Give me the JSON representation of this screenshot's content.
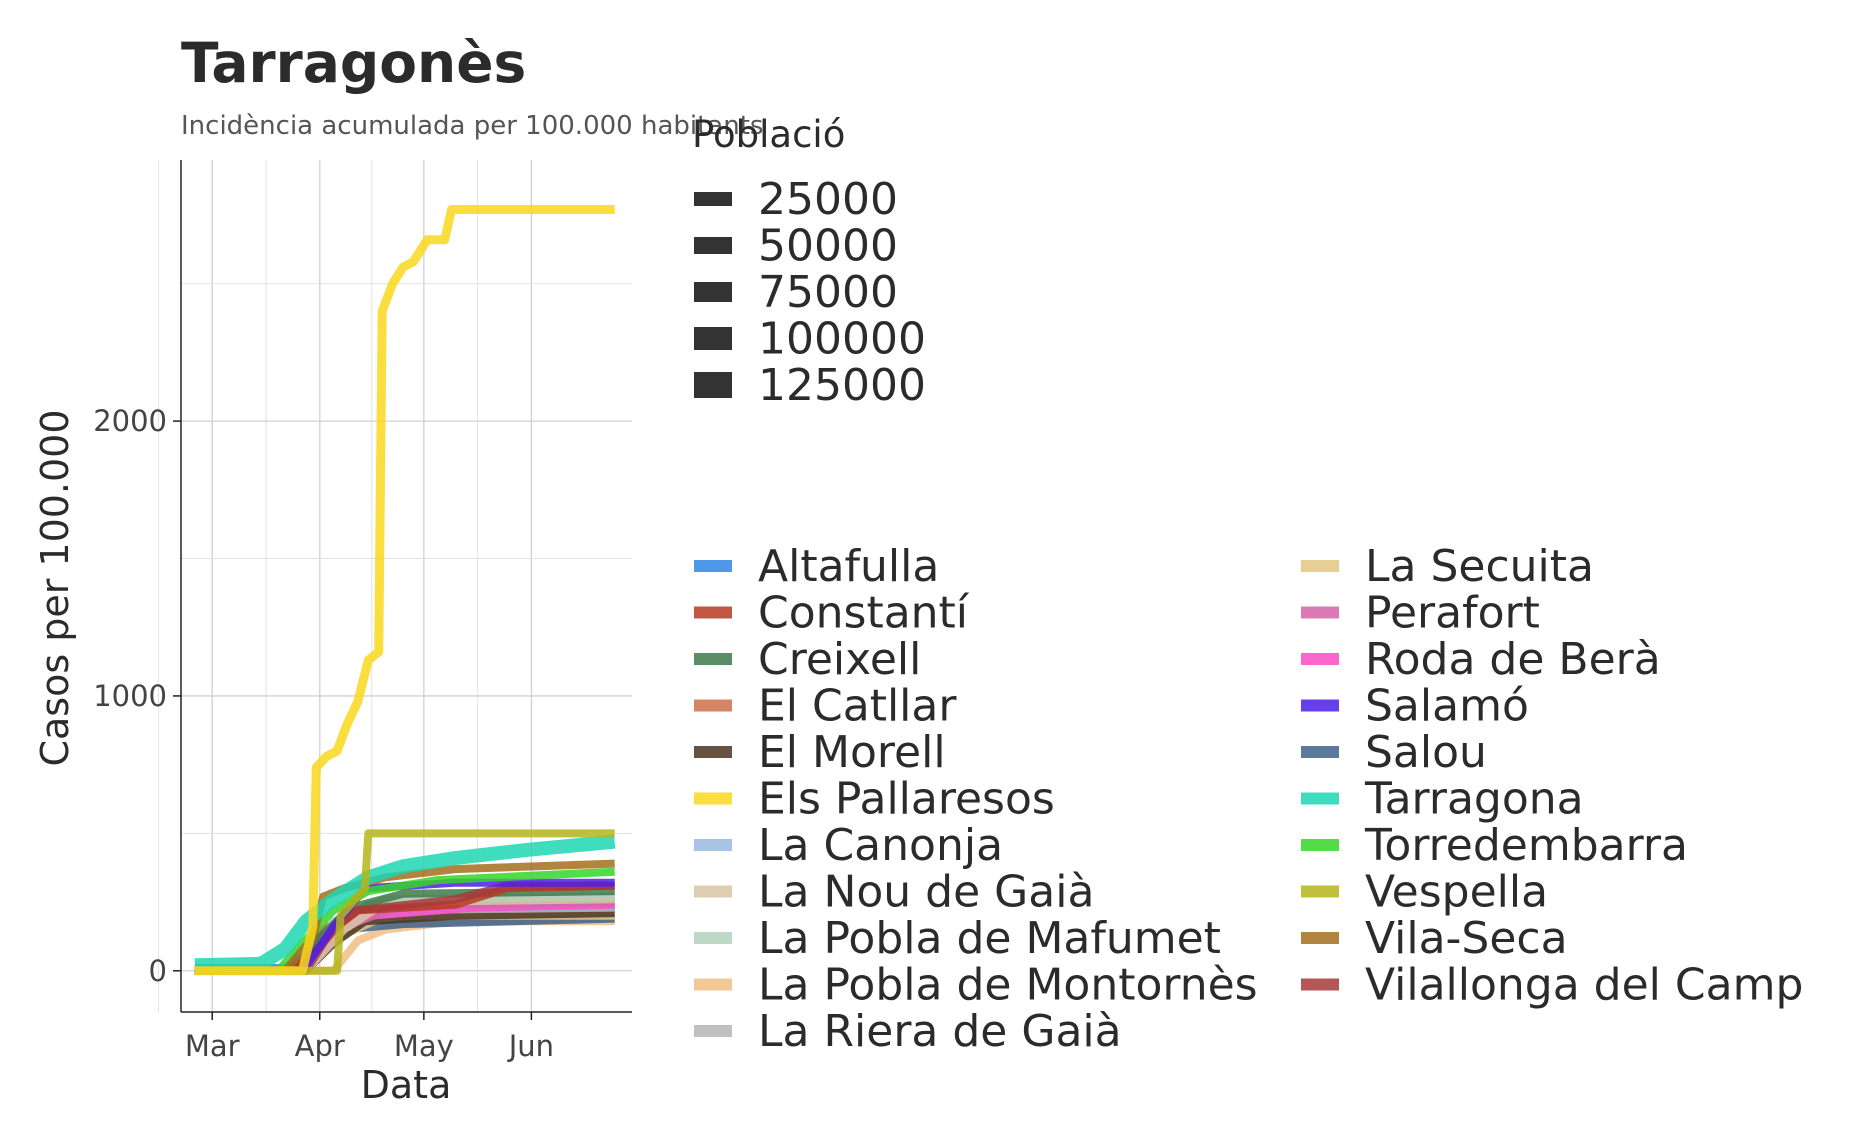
{
  "chart_data": {
    "type": "line",
    "title": "Tarragonès",
    "subtitle": "Incidència acumulada per 100.000 habitants",
    "xlabel": "Data",
    "ylabel": "Casos per 100.000",
    "x_ticks": [
      "Mar",
      "Apr",
      "May",
      "Jun"
    ],
    "x_tick_dates": [
      "2020-03-01",
      "2020-04-01",
      "2020-05-01",
      "2020-06-01"
    ],
    "y_ticks": [
      0,
      1000,
      2000
    ],
    "xlim": [
      "2020-02-21",
      "2020-06-30"
    ],
    "ylim": [
      -150,
      2950
    ],
    "grid": true,
    "size_legend": {
      "title": "Població",
      "values": [
        "25000",
        "50000",
        "75000",
        "100000",
        "125000"
      ]
    },
    "series": [
      {
        "name": "Altafulla",
        "color": "#2f86e8",
        "points": [
          [
            "2020-02-25",
            10
          ],
          [
            "2020-03-22",
            10
          ],
          [
            "2020-03-28",
            60
          ],
          [
            "2020-04-02",
            140
          ],
          [
            "2020-04-08",
            200
          ],
          [
            "2020-04-20",
            220
          ],
          [
            "2020-05-10",
            230
          ],
          [
            "2020-06-25",
            230
          ]
        ]
      },
      {
        "name": "Constantí",
        "color": "#b73a22",
        "points": [
          [
            "2020-02-25",
            0
          ],
          [
            "2020-03-22",
            0
          ],
          [
            "2020-03-30",
            60
          ],
          [
            "2020-04-06",
            160
          ],
          [
            "2020-04-12",
            220
          ],
          [
            "2020-05-10",
            240
          ],
          [
            "2020-05-25",
            300
          ],
          [
            "2020-06-25",
            310
          ]
        ]
      },
      {
        "name": "Creixell",
        "color": "#3d7a4a",
        "points": [
          [
            "2020-02-25",
            0
          ],
          [
            "2020-03-25",
            0
          ],
          [
            "2020-04-01",
            120
          ],
          [
            "2020-04-10",
            230
          ],
          [
            "2020-04-25",
            280
          ],
          [
            "2020-06-25",
            290
          ]
        ]
      },
      {
        "name": "El Catllar",
        "color": "#cc7049",
        "points": [
          [
            "2020-02-25",
            0
          ],
          [
            "2020-03-25",
            0
          ],
          [
            "2020-04-02",
            150
          ],
          [
            "2020-04-15",
            240
          ],
          [
            "2020-05-15",
            260
          ],
          [
            "2020-06-25",
            260
          ]
        ]
      },
      {
        "name": "El Morell",
        "color": "#4a3421",
        "points": [
          [
            "2020-02-25",
            0
          ],
          [
            "2020-03-28",
            0
          ],
          [
            "2020-04-05",
            100
          ],
          [
            "2020-04-14",
            180
          ],
          [
            "2020-05-10",
            200
          ],
          [
            "2020-06-25",
            210
          ]
        ]
      },
      {
        "name": "Els Pallaresos",
        "color": "#f9d71c",
        "points": [
          [
            "2020-02-25",
            0
          ],
          [
            "2020-03-27",
            0
          ],
          [
            "2020-03-30",
            160
          ],
          [
            "2020-03-31",
            740
          ],
          [
            "2020-04-03",
            780
          ],
          [
            "2020-04-06",
            800
          ],
          [
            "2020-04-09",
            900
          ],
          [
            "2020-04-12",
            980
          ],
          [
            "2020-04-15",
            1130
          ],
          [
            "2020-04-18",
            1160
          ],
          [
            "2020-04-19",
            2400
          ],
          [
            "2020-04-22",
            2500
          ],
          [
            "2020-04-25",
            2560
          ],
          [
            "2020-04-28",
            2580
          ],
          [
            "2020-05-02",
            2660
          ],
          [
            "2020-05-07",
            2660
          ],
          [
            "2020-05-09",
            2770
          ],
          [
            "2020-05-20",
            2770
          ],
          [
            "2020-06-25",
            2770
          ]
        ]
      },
      {
        "name": "La Canonja",
        "color": "#9ab9df",
        "points": [
          [
            "2020-02-25",
            0
          ],
          [
            "2020-03-25",
            0
          ],
          [
            "2020-04-03",
            120
          ],
          [
            "2020-04-15",
            200
          ],
          [
            "2020-05-15",
            230
          ],
          [
            "2020-06-25",
            240
          ]
        ]
      },
      {
        "name": "La Nou de Gaià",
        "color": "#d7c6a3",
        "points": [
          [
            "2020-02-25",
            0
          ],
          [
            "2020-03-28",
            0
          ],
          [
            "2020-04-08",
            150
          ],
          [
            "2020-04-20",
            250
          ],
          [
            "2020-06-25",
            260
          ]
        ]
      },
      {
        "name": "La Pobla de Mafumet",
        "color": "#b3d1be",
        "points": [
          [
            "2020-02-25",
            0
          ],
          [
            "2020-03-28",
            0
          ],
          [
            "2020-04-05",
            180
          ],
          [
            "2020-04-20",
            260
          ],
          [
            "2020-06-25",
            270
          ]
        ]
      },
      {
        "name": "La Pobla de Montornès",
        "color": "#f0be85",
        "points": [
          [
            "2020-02-25",
            0
          ],
          [
            "2020-04-05",
            0
          ],
          [
            "2020-04-12",
            110
          ],
          [
            "2020-04-20",
            150
          ],
          [
            "2020-05-10",
            180
          ],
          [
            "2020-06-25",
            180
          ]
        ]
      },
      {
        "name": "La Riera de Gaià",
        "color": "#b5b5b5",
        "points": [
          [
            "2020-02-25",
            0
          ],
          [
            "2020-03-26",
            0
          ],
          [
            "2020-04-04",
            140
          ],
          [
            "2020-04-18",
            220
          ],
          [
            "2020-06-25",
            230
          ]
        ]
      },
      {
        "name": "La Secuita",
        "color": "#e3c582",
        "points": [
          [
            "2020-02-25",
            0
          ],
          [
            "2020-03-28",
            0
          ],
          [
            "2020-04-06",
            120
          ],
          [
            "2020-04-20",
            200
          ],
          [
            "2020-06-25",
            200
          ]
        ]
      },
      {
        "name": "Perafort",
        "color": "#d564a9",
        "points": [
          [
            "2020-02-25",
            0
          ],
          [
            "2020-03-28",
            0
          ],
          [
            "2020-04-08",
            160
          ],
          [
            "2020-04-25",
            240
          ],
          [
            "2020-06-25",
            250
          ]
        ]
      },
      {
        "name": "Roda de Berà",
        "color": "#fb4cc6",
        "points": [
          [
            "2020-02-25",
            0
          ],
          [
            "2020-03-25",
            0
          ],
          [
            "2020-04-03",
            140
          ],
          [
            "2020-04-15",
            200
          ],
          [
            "2020-05-15",
            230
          ],
          [
            "2020-06-25",
            240
          ]
        ]
      },
      {
        "name": "Salamó",
        "color": "#4c1fe8",
        "points": [
          [
            "2020-02-25",
            0
          ],
          [
            "2020-03-27",
            0
          ],
          [
            "2020-04-05",
            160
          ],
          [
            "2020-04-14",
            300
          ],
          [
            "2020-05-10",
            320
          ],
          [
            "2020-06-25",
            320
          ]
        ]
      },
      {
        "name": "Salou",
        "color": "#3e6288",
        "points": [
          [
            "2020-02-25",
            0
          ],
          [
            "2020-03-22",
            0
          ],
          [
            "2020-03-30",
            80
          ],
          [
            "2020-04-08",
            150
          ],
          [
            "2020-04-25",
            170
          ],
          [
            "2020-06-25",
            190
          ]
        ]
      },
      {
        "name": "Tarragona",
        "color": "#1fd6b3",
        "points": [
          [
            "2020-02-25",
            20
          ],
          [
            "2020-03-15",
            25
          ],
          [
            "2020-03-22",
            80
          ],
          [
            "2020-03-28",
            180
          ],
          [
            "2020-04-05",
            260
          ],
          [
            "2020-04-15",
            340
          ],
          [
            "2020-04-25",
            380
          ],
          [
            "2020-05-10",
            410
          ],
          [
            "2020-05-31",
            440
          ],
          [
            "2020-06-25",
            470
          ]
        ]
      },
      {
        "name": "Torredembarra",
        "color": "#36d52a",
        "points": [
          [
            "2020-02-25",
            0
          ],
          [
            "2020-03-20",
            0
          ],
          [
            "2020-03-27",
            100
          ],
          [
            "2020-04-05",
            220
          ],
          [
            "2020-04-15",
            290
          ],
          [
            "2020-05-05",
            330
          ],
          [
            "2020-06-25",
            360
          ]
        ]
      },
      {
        "name": "Vespella",
        "color": "#b5b51b",
        "points": [
          [
            "2020-02-25",
            0
          ],
          [
            "2020-04-06",
            0
          ],
          [
            "2020-04-07",
            200
          ],
          [
            "2020-04-14",
            300
          ],
          [
            "2020-04-15",
            500
          ],
          [
            "2020-06-25",
            500
          ]
        ]
      },
      {
        "name": "Vila-Seca",
        "color": "#a36e1e",
        "points": [
          [
            "2020-02-25",
            0
          ],
          [
            "2020-03-22",
            0
          ],
          [
            "2020-03-30",
            120
          ],
          [
            "2020-04-02",
            270
          ],
          [
            "2020-04-08",
            300
          ],
          [
            "2020-04-20",
            340
          ],
          [
            "2020-05-10",
            370
          ],
          [
            "2020-06-25",
            390
          ]
        ]
      },
      {
        "name": "Vilallonga del Camp",
        "color": "#a83a3a",
        "points": [
          [
            "2020-02-25",
            0
          ],
          [
            "2020-03-28",
            0
          ],
          [
            "2020-04-05",
            160
          ],
          [
            "2020-04-12",
            220
          ],
          [
            "2020-05-10",
            260
          ],
          [
            "2020-05-25",
            310
          ],
          [
            "2020-06-25",
            310
          ]
        ]
      }
    ]
  }
}
